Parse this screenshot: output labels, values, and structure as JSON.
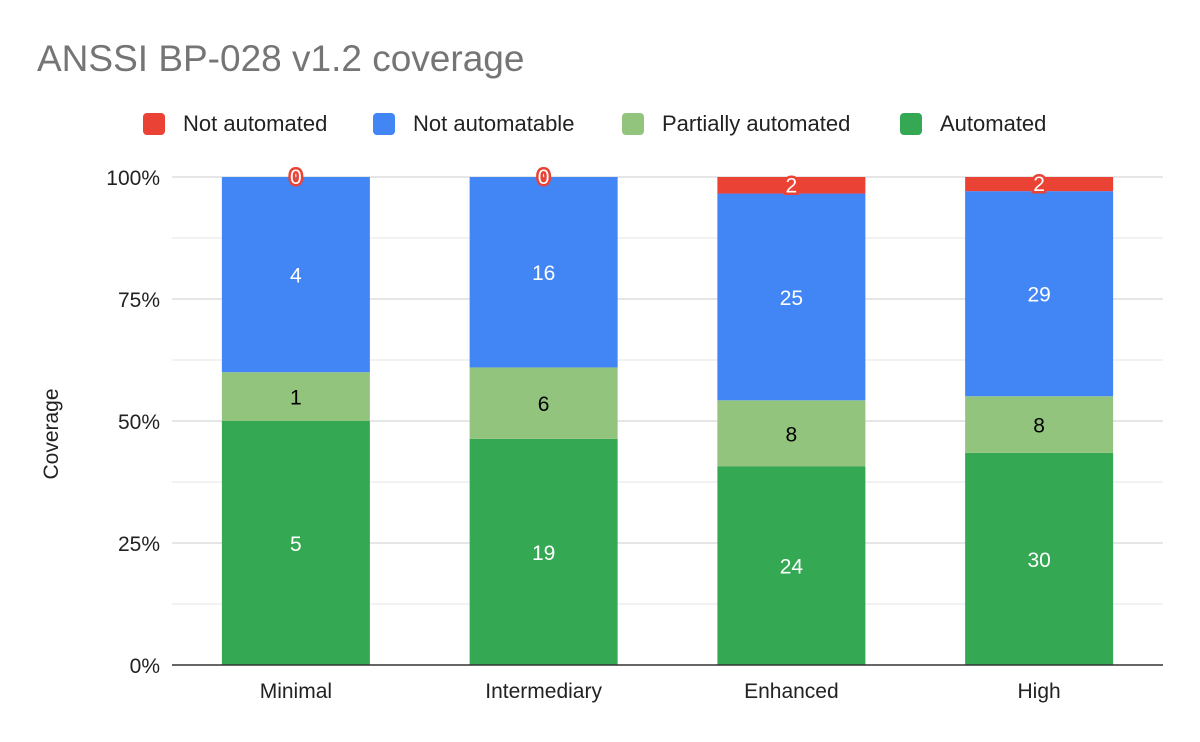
{
  "colors": {
    "not_automated": "#ea4335",
    "not_automatable": "#4285f4",
    "partially_automated": "#93c47d",
    "automated": "#34a853",
    "title": "#757575",
    "grid": "#cccccc"
  },
  "chart_data": {
    "type": "bar",
    "stacked": "percent",
    "title": "ANSSI BP-028 v1.2 coverage",
    "xlabel": "",
    "ylabel": "Coverage",
    "ylim": [
      0,
      100
    ],
    "y_ticks": [
      "0%",
      "25%",
      "50%",
      "75%",
      "100%"
    ],
    "grid": true,
    "legend_position": "top",
    "categories": [
      "Minimal",
      "Intermediary",
      "Enhanced",
      "High"
    ],
    "series": [
      {
        "name": "Automated",
        "color": "#34a853",
        "values": [
          5,
          19,
          24,
          30
        ]
      },
      {
        "name": "Partially automated",
        "color": "#93c47d",
        "values": [
          1,
          6,
          8,
          8
        ]
      },
      {
        "name": "Not automatable",
        "color": "#4285f4",
        "values": [
          4,
          16,
          25,
          29
        ]
      },
      {
        "name": "Not automated",
        "color": "#ea4335",
        "values": [
          0,
          0,
          2,
          2
        ]
      }
    ],
    "legend": [
      "Not automated",
      "Not automatable",
      "Partially automated",
      "Automated"
    ]
  }
}
